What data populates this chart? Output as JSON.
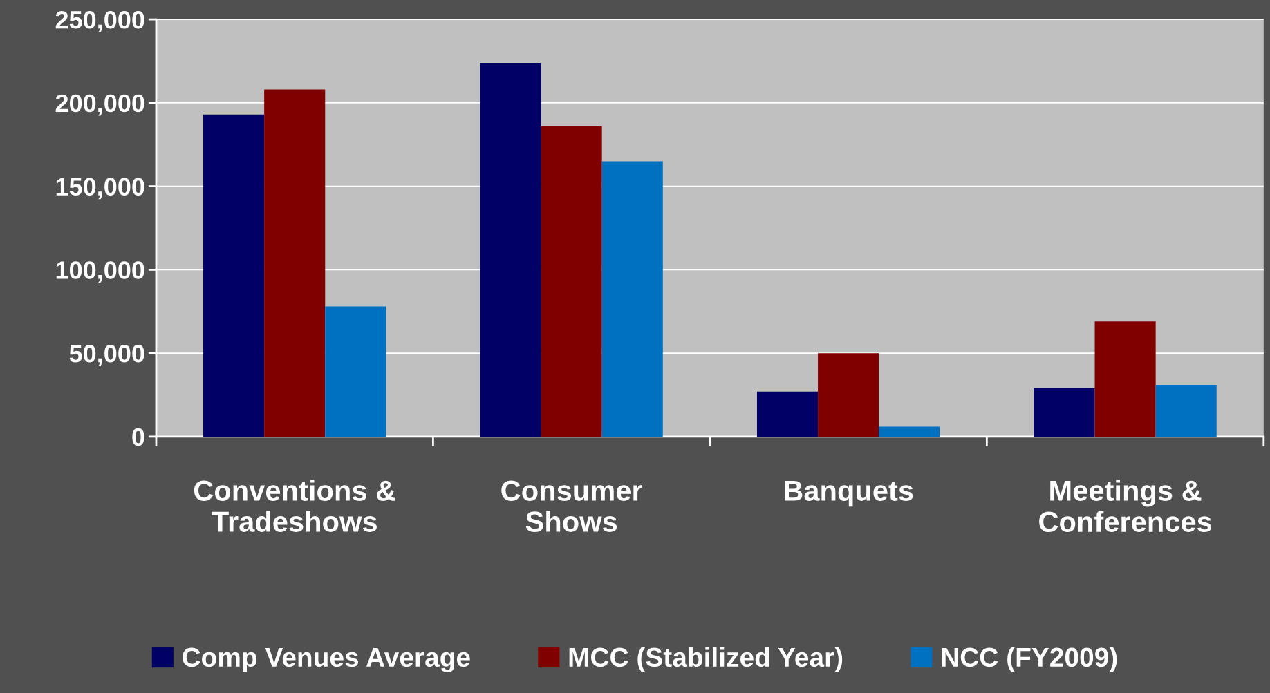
{
  "chart_data": {
    "type": "bar",
    "categories": [
      "Conventions &\nTradeshows",
      "Consumer\nShows",
      "Banquets",
      "Meetings &\nConferences"
    ],
    "series": [
      {
        "name": "Comp Venues Average",
        "color": "#000066",
        "values": [
          193000,
          224000,
          27000,
          29000
        ]
      },
      {
        "name": "MCC (Stabilized Year)",
        "color": "#800000",
        "values": [
          208000,
          186000,
          50000,
          69000
        ]
      },
      {
        "name": "NCC (FY2009)",
        "color": "#0070c0",
        "values": [
          78000,
          165000,
          6000,
          31000
        ]
      }
    ],
    "ylim": [
      0,
      250000
    ],
    "yticks": [
      {
        "value": 0,
        "label": "0"
      },
      {
        "value": 50000,
        "label": "50,000"
      },
      {
        "value": 100000,
        "label": "100,000"
      },
      {
        "value": 150000,
        "label": "150,000"
      },
      {
        "value": 200000,
        "label": "200,000"
      },
      {
        "value": 250000,
        "label": "250,000"
      }
    ],
    "grid": "y",
    "legend": "bottom"
  }
}
